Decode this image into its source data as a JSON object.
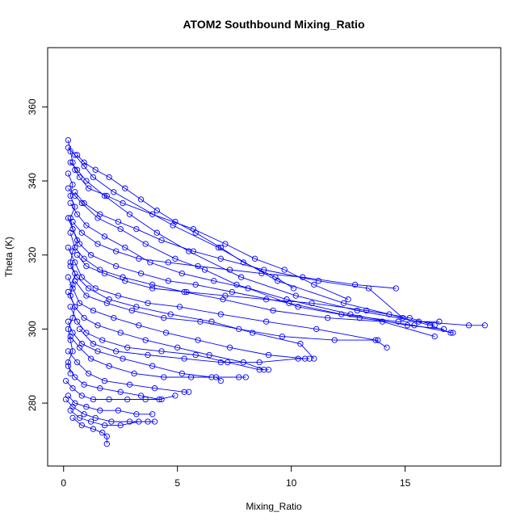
{
  "chart_data": {
    "type": "scatter",
    "title": "ATOM2 Southbound Mixing_Ratio",
    "xlabel": "Mixing_Ratio",
    "ylabel": "Theta (K)",
    "xlim": [
      -0.7,
      19.2
    ],
    "ylim": [
      263,
      376
    ],
    "xticks": [
      0,
      5,
      10,
      15
    ],
    "yticks": [
      280,
      300,
      320,
      340,
      360
    ],
    "color": "#0000ff",
    "marker": "open-circle",
    "connected": true,
    "grid": false,
    "series": [
      {
        "points": [
          [
            0.2,
            351
          ],
          [
            0.3,
            348
          ],
          [
            0.4,
            345
          ],
          [
            0.5,
            343
          ],
          [
            0.7,
            341
          ],
          [
            1.1,
            338
          ],
          [
            1.9,
            336
          ],
          [
            2.6,
            334
          ],
          [
            3.9,
            331
          ],
          [
            5.7,
            327
          ],
          [
            7.1,
            323
          ],
          [
            8.4,
            319
          ],
          [
            9.7,
            316
          ],
          [
            11.0,
            312
          ],
          [
            12.5,
            308
          ]
        ]
      },
      {
        "points": [
          [
            0.2,
            349
          ],
          [
            0.5,
            347
          ],
          [
            0.9,
            344
          ],
          [
            1.3,
            341
          ],
          [
            2.2,
            337
          ],
          [
            4.8,
            328
          ],
          [
            6.8,
            322
          ],
          [
            9.4,
            313
          ],
          [
            12.3,
            307
          ],
          [
            14.3,
            304
          ],
          [
            16.1,
            301
          ],
          [
            17.0,
            299
          ]
        ]
      },
      {
        "points": [
          [
            0.3,
            345
          ],
          [
            0.6,
            343
          ],
          [
            1.0,
            340
          ],
          [
            1.8,
            336
          ],
          [
            2.9,
            331
          ],
          [
            4.1,
            326
          ],
          [
            5.5,
            321
          ],
          [
            7.8,
            314
          ],
          [
            10.2,
            309
          ],
          [
            12.9,
            305
          ],
          [
            15.6,
            302
          ],
          [
            17.8,
            301
          ],
          [
            18.5,
            301
          ]
        ]
      },
      {
        "points": [
          [
            0.2,
            338
          ],
          [
            0.5,
            336
          ],
          [
            0.8,
            334
          ],
          [
            1.5,
            330
          ],
          [
            2.5,
            327
          ],
          [
            3.6,
            323
          ],
          [
            4.9,
            319
          ],
          [
            6.2,
            316
          ],
          [
            7.6,
            312
          ],
          [
            9.8,
            308
          ],
          [
            12.6,
            304
          ],
          [
            15.1,
            301
          ],
          [
            16.7,
            300
          ]
        ]
      },
      {
        "points": [
          [
            0.3,
            334
          ],
          [
            0.6,
            331
          ],
          [
            1.0,
            328
          ],
          [
            1.8,
            325
          ],
          [
            2.7,
            322
          ],
          [
            3.8,
            318
          ],
          [
            5.2,
            315
          ],
          [
            6.6,
            313
          ],
          [
            8.1,
            311
          ],
          [
            10.3,
            306
          ],
          [
            13.0,
            303
          ],
          [
            15.4,
            301
          ],
          [
            17.1,
            299
          ]
        ]
      },
      {
        "points": [
          [
            0.2,
            330
          ],
          [
            0.4,
            327
          ],
          [
            0.7,
            323
          ],
          [
            1.2,
            320
          ],
          [
            2.3,
            317
          ],
          [
            3.4,
            315
          ],
          [
            4.6,
            313
          ],
          [
            5.8,
            312
          ],
          [
            7.4,
            310
          ],
          [
            9.9,
            307
          ],
          [
            12.2,
            304
          ],
          [
            14.7,
            302
          ],
          [
            16.5,
            302
          ]
        ]
      },
      {
        "points": [
          [
            0.3,
            326
          ],
          [
            0.5,
            322
          ],
          [
            0.9,
            319
          ],
          [
            1.6,
            316
          ],
          [
            2.6,
            314
          ],
          [
            3.9,
            312
          ],
          [
            5.3,
            310
          ],
          [
            7.0,
            308
          ],
          [
            9.2,
            305
          ],
          [
            11.6,
            303
          ],
          [
            14.0,
            302
          ],
          [
            16.3,
            298
          ]
        ]
      },
      {
        "points": [
          [
            0.2,
            322
          ],
          [
            0.5,
            318
          ],
          [
            0.8,
            314
          ],
          [
            1.4,
            311
          ],
          [
            2.4,
            309
          ],
          [
            3.7,
            307
          ],
          [
            5.1,
            306
          ],
          [
            6.9,
            304
          ],
          [
            8.9,
            302
          ],
          [
            11.1,
            300
          ],
          [
            13.7,
            297
          ],
          [
            14.2,
            295
          ]
        ]
      },
      {
        "points": [
          [
            0.3,
            317
          ],
          [
            0.6,
            314
          ],
          [
            1.1,
            311
          ],
          [
            2.0,
            308
          ],
          [
            3.2,
            306
          ],
          [
            4.7,
            304
          ],
          [
            6.5,
            302
          ],
          [
            8.3,
            299
          ],
          [
            10.4,
            296
          ],
          [
            11.0,
            292
          ]
        ]
      },
      {
        "points": [
          [
            0.2,
            314
          ],
          [
            0.4,
            311
          ],
          [
            0.7,
            307
          ],
          [
            1.3,
            305
          ],
          [
            2.2,
            303
          ],
          [
            3.3,
            301
          ],
          [
            4.5,
            299
          ],
          [
            5.9,
            297
          ],
          [
            7.3,
            295
          ],
          [
            9.0,
            293
          ],
          [
            10.6,
            292
          ]
        ]
      },
      {
        "points": [
          [
            0.2,
            310
          ],
          [
            0.5,
            306
          ],
          [
            0.9,
            303
          ],
          [
            1.5,
            301
          ],
          [
            2.5,
            299
          ],
          [
            3.6,
            297
          ],
          [
            5.0,
            295
          ],
          [
            6.4,
            293
          ],
          [
            7.9,
            291
          ],
          [
            8.8,
            289
          ]
        ]
      },
      {
        "points": [
          [
            0.3,
            306
          ],
          [
            0.6,
            302
          ],
          [
            1.0,
            299
          ],
          [
            1.7,
            297
          ],
          [
            2.8,
            295
          ],
          [
            4.3,
            294
          ],
          [
            5.8,
            293
          ],
          [
            7.2,
            291
          ],
          [
            8.6,
            289
          ],
          [
            9.0,
            289
          ]
        ]
      },
      {
        "points": [
          [
            0.2,
            302
          ],
          [
            0.4,
            299
          ],
          [
            0.8,
            296
          ],
          [
            1.5,
            294
          ],
          [
            2.6,
            292
          ],
          [
            3.9,
            290
          ],
          [
            5.2,
            288
          ],
          [
            6.5,
            287
          ],
          [
            7.7,
            287
          ],
          [
            8.0,
            287
          ]
        ]
      },
      {
        "points": [
          [
            0.3,
            298
          ],
          [
            0.7,
            295
          ],
          [
            1.2,
            292
          ],
          [
            2.0,
            290
          ],
          [
            3.1,
            288
          ],
          [
            4.4,
            287
          ],
          [
            5.6,
            287
          ],
          [
            6.7,
            287
          ],
          [
            6.9,
            286
          ]
        ]
      },
      {
        "points": [
          [
            0.2,
            294
          ],
          [
            0.6,
            291
          ],
          [
            1.1,
            288
          ],
          [
            1.8,
            286
          ],
          [
            2.9,
            285
          ],
          [
            4.0,
            284
          ],
          [
            5.3,
            283
          ],
          [
            5.5,
            283
          ]
        ]
      },
      {
        "points": [
          [
            0.2,
            290
          ],
          [
            0.5,
            287
          ],
          [
            0.9,
            285
          ],
          [
            1.6,
            284
          ],
          [
            2.5,
            283
          ],
          [
            3.4,
            282
          ],
          [
            4.2,
            281
          ],
          [
            4.9,
            282
          ]
        ]
      },
      {
        "points": [
          [
            0.1,
            286
          ],
          [
            0.4,
            284
          ],
          [
            0.8,
            282
          ],
          [
            1.3,
            281
          ],
          [
            2.0,
            281
          ],
          [
            2.8,
            281
          ],
          [
            3.6,
            281
          ],
          [
            4.3,
            281
          ]
        ]
      },
      {
        "points": [
          [
            0.2,
            282
          ],
          [
            0.5,
            280
          ],
          [
            1.0,
            279
          ],
          [
            1.6,
            278
          ],
          [
            2.4,
            278
          ],
          [
            3.2,
            277
          ],
          [
            3.9,
            277
          ]
        ]
      },
      {
        "points": [
          [
            0.1,
            281
          ],
          [
            0.4,
            279
          ],
          [
            0.9,
            277
          ],
          [
            1.4,
            276
          ],
          [
            2.1,
            275
          ],
          [
            2.9,
            275
          ],
          [
            3.7,
            275
          ]
        ]
      },
      {
        "points": [
          [
            0.3,
            278
          ],
          [
            0.7,
            276
          ],
          [
            1.2,
            275
          ],
          [
            1.8,
            274
          ],
          [
            2.5,
            274
          ],
          [
            3.3,
            275
          ],
          [
            4.0,
            275
          ]
        ]
      },
      {
        "points": [
          [
            0.4,
            276
          ],
          [
            0.8,
            274
          ],
          [
            1.3,
            273
          ],
          [
            1.7,
            272
          ],
          [
            1.9,
            271
          ],
          [
            1.9,
            269
          ]
        ]
      },
      {
        "points": [
          [
            0.2,
            342
          ],
          [
            0.4,
            339
          ],
          [
            0.3,
            336
          ],
          [
            0.5,
            333
          ],
          [
            0.3,
            330
          ],
          [
            0.4,
            327
          ],
          [
            0.6,
            324
          ],
          [
            0.4,
            321
          ],
          [
            0.3,
            318
          ],
          [
            0.5,
            315
          ],
          [
            0.4,
            312
          ],
          [
            0.3,
            309
          ],
          [
            0.5,
            306
          ],
          [
            0.4,
            303
          ],
          [
            0.2,
            300
          ],
          [
            0.3,
            297
          ],
          [
            0.4,
            294
          ],
          [
            0.2,
            291
          ],
          [
            0.3,
            288
          ]
        ]
      },
      {
        "points": [
          [
            0.6,
            347
          ],
          [
            0.9,
            345
          ],
          [
            1.4,
            343
          ],
          [
            2.0,
            341
          ],
          [
            2.7,
            338
          ],
          [
            3.4,
            335
          ],
          [
            4.1,
            332
          ],
          [
            4.9,
            329
          ],
          [
            5.8,
            326
          ],
          [
            6.9,
            322
          ],
          [
            7.9,
            318
          ],
          [
            9.3,
            314
          ],
          [
            10.1,
            311
          ]
        ]
      },
      {
        "points": [
          [
            0.5,
            337
          ],
          [
            0.9,
            334
          ],
          [
            1.6,
            331
          ],
          [
            2.4,
            329
          ],
          [
            3.2,
            327
          ],
          [
            4.3,
            324
          ],
          [
            5.7,
            321
          ],
          [
            6.9,
            319
          ],
          [
            8.8,
            316
          ],
          [
            11.2,
            313
          ],
          [
            13.4,
            311
          ],
          [
            14.9,
            303
          ]
        ]
      },
      {
        "points": [
          [
            0.4,
            329
          ],
          [
            0.8,
            326
          ],
          [
            1.5,
            323
          ],
          [
            2.3,
            321
          ],
          [
            3.3,
            319
          ],
          [
            4.6,
            318
          ],
          [
            5.9,
            317
          ],
          [
            7.3,
            316
          ],
          [
            8.7,
            315
          ],
          [
            10.5,
            314
          ],
          [
            12.8,
            312
          ],
          [
            14.6,
            311
          ]
        ]
      },
      {
        "points": [
          [
            0.6,
            320
          ],
          [
            1.0,
            317
          ],
          [
            1.8,
            315
          ],
          [
            2.7,
            313
          ],
          [
            3.9,
            311
          ],
          [
            5.4,
            310
          ],
          [
            7.1,
            309
          ],
          [
            8.9,
            308
          ],
          [
            10.9,
            307
          ],
          [
            13.3,
            305
          ],
          [
            15.2,
            303
          ],
          [
            16.3,
            301
          ]
        ]
      },
      {
        "points": [
          [
            0.5,
            313
          ],
          [
            1.0,
            309
          ],
          [
            1.9,
            307
          ],
          [
            3.0,
            305
          ],
          [
            4.4,
            303
          ],
          [
            6.0,
            302
          ],
          [
            7.7,
            300
          ],
          [
            9.6,
            298
          ],
          [
            11.9,
            297
          ],
          [
            13.8,
            297
          ]
        ]
      },
      {
        "points": [
          [
            0.7,
            300
          ],
          [
            1.3,
            296
          ],
          [
            2.3,
            294
          ],
          [
            3.7,
            293
          ],
          [
            5.3,
            292
          ],
          [
            6.9,
            291
          ],
          [
            8.6,
            291
          ],
          [
            10.3,
            292
          ],
          [
            10.8,
            292
          ]
        ]
      }
    ]
  }
}
